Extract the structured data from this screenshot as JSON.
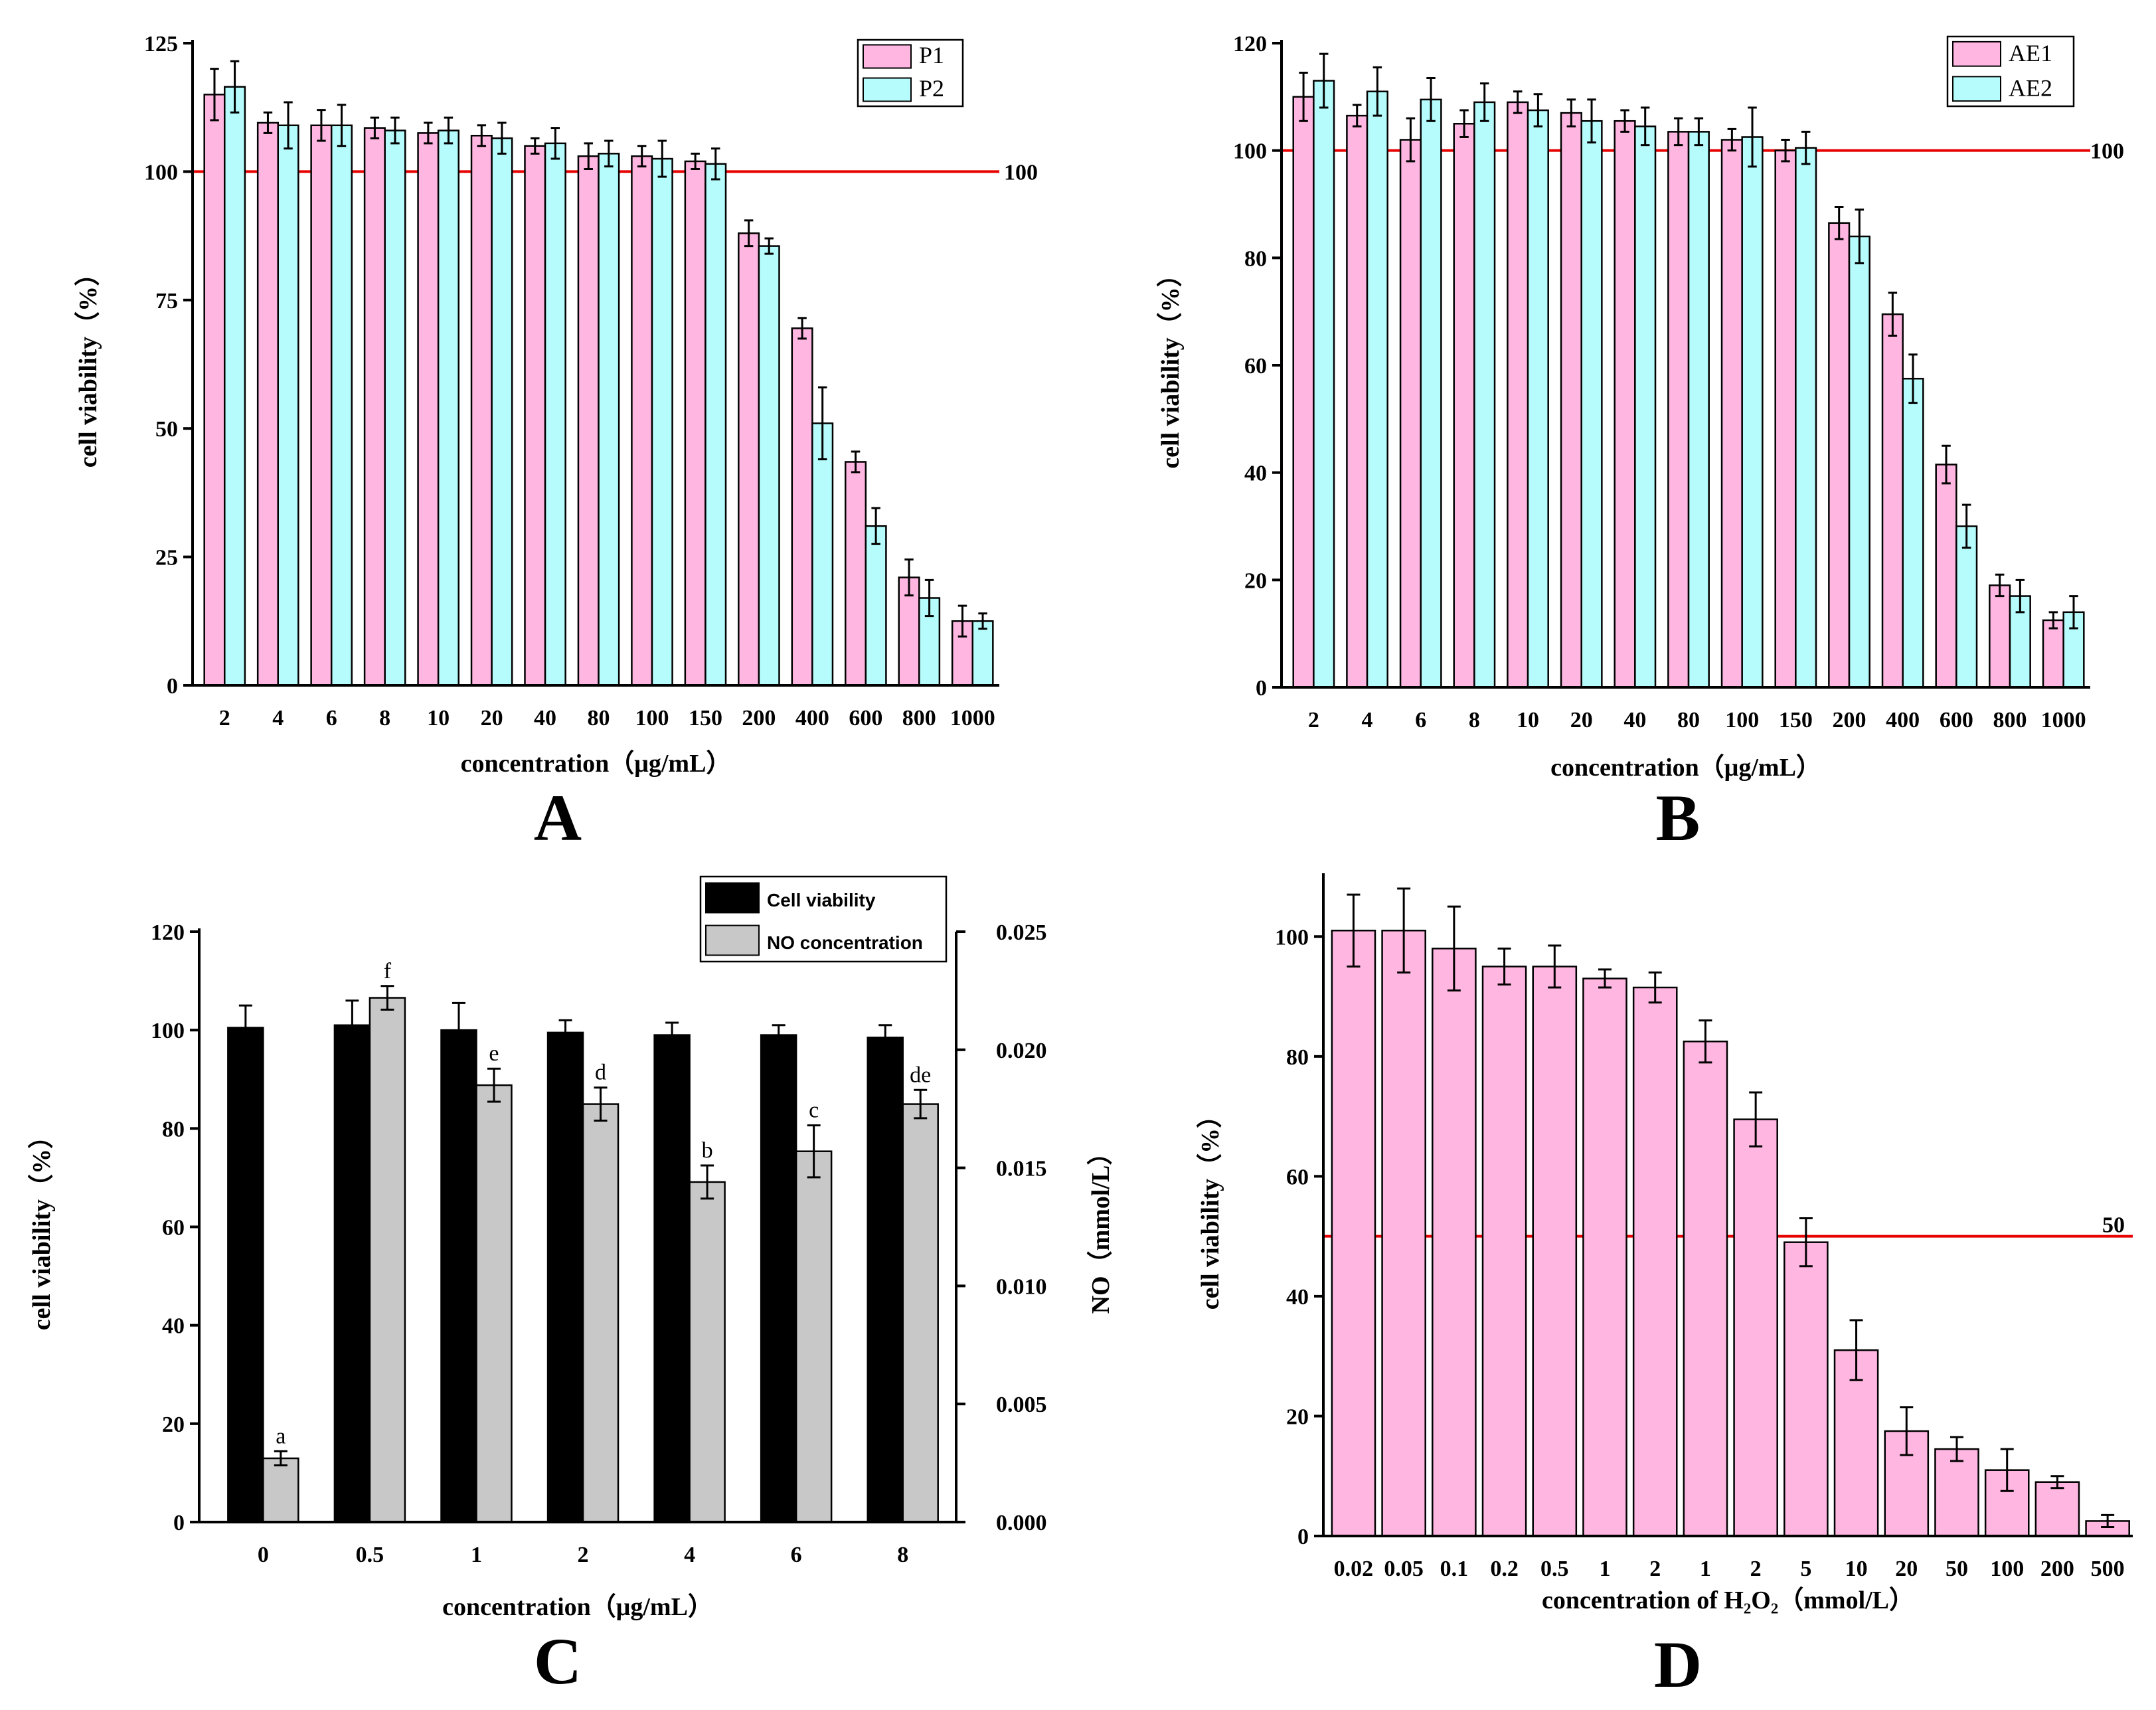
{
  "chart_data": [
    {
      "panel": "A",
      "type": "bar",
      "xlabel": "concentration（μg/mL）",
      "ylabel": "cell viability（%）",
      "ylim": [
        0,
        125
      ],
      "yticks": [
        0,
        25,
        50,
        75,
        100,
        125
      ],
      "categories": [
        "2",
        "4",
        "6",
        "8",
        "10",
        "20",
        "40",
        "80",
        "100",
        "150",
        "200",
        "400",
        "600",
        "800",
        "1000"
      ],
      "series": [
        {
          "name": "P1",
          "color": "#ffb6e1",
          "values": [
            115,
            109.5,
            109,
            108.5,
            107.5,
            107,
            105,
            103,
            103,
            102,
            88,
            69.5,
            43.5,
            21,
            12.5
          ],
          "errors": [
            5,
            2,
            3,
            2,
            2,
            2,
            1.5,
            2.5,
            2,
            1.5,
            2.5,
            2,
            2,
            3.5,
            3
          ]
        },
        {
          "name": "P2",
          "color": "#b6fcfc",
          "values": [
            116.5,
            109,
            109,
            108,
            108,
            106.5,
            105.5,
            103.5,
            102.5,
            101.5,
            85.5,
            51,
            31,
            17,
            12.5
          ],
          "errors": [
            5,
            4.5,
            4,
            2.5,
            2.5,
            3,
            3,
            2.5,
            3.5,
            3,
            1.5,
            7,
            3.5,
            3.5,
            1.5
          ]
        }
      ],
      "reference_line": {
        "value": 100,
        "label": "100"
      },
      "legend": [
        "P1",
        "P2"
      ],
      "legend_position": "top-right"
    },
    {
      "panel": "B",
      "type": "bar",
      "xlabel": "concentration（μg/mL）",
      "ylabel": "cell viability（%）",
      "ylim": [
        0,
        120
      ],
      "yticks": [
        0,
        20,
        40,
        60,
        80,
        100,
        120
      ],
      "categories": [
        "2",
        "4",
        "6",
        "8",
        "10",
        "20",
        "40",
        "80",
        "100",
        "150",
        "200",
        "400",
        "600",
        "800",
        "1000"
      ],
      "series": [
        {
          "name": "AE1",
          "color": "#ffb6e1",
          "values": [
            110,
            106.5,
            102,
            105,
            109,
            107,
            105.5,
            103.5,
            102,
            100,
            86.5,
            69.5,
            41.5,
            19,
            12.5
          ],
          "errors": [
            4.5,
            2,
            4,
            2.5,
            2,
            2.5,
            2,
            2.5,
            2,
            2,
            3,
            4,
            3.5,
            2,
            1.5
          ]
        },
        {
          "name": "AE2",
          "color": "#b6fcfc",
          "values": [
            113,
            111,
            109.5,
            109,
            107.5,
            105.5,
            104.5,
            103.5,
            102.5,
            100.5,
            84,
            57.5,
            30,
            17,
            14
          ],
          "errors": [
            5,
            4.5,
            4,
            3.5,
            3,
            4,
            3.5,
            2.5,
            5.5,
            3,
            5,
            4.5,
            4,
            3,
            3
          ]
        }
      ],
      "reference_line": {
        "value": 100,
        "label": "100"
      },
      "legend": [
        "AE1",
        "AE2"
      ],
      "legend_position": "top-right"
    },
    {
      "panel": "C",
      "type": "bar",
      "xlabel": "concentration（μg/mL）",
      "ylabel": "cell viability（%）",
      "y2label": "NO（mmol/L）",
      "ylim": [
        0,
        120
      ],
      "yticks": [
        0,
        20,
        40,
        60,
        80,
        100,
        120
      ],
      "y2lim": [
        0,
        0.025
      ],
      "y2ticks": [
        "0.000",
        "0.005",
        "0.010",
        "0.015",
        "0.020",
        "0.025"
      ],
      "categories": [
        "0",
        "0.5",
        "1",
        "2",
        "4",
        "6",
        "8"
      ],
      "series": [
        {
          "name": "Cell viability",
          "color": "#000000",
          "axis": "left",
          "values": [
            100.5,
            101,
            100,
            99.5,
            99,
            99,
            98.5
          ],
          "errors": [
            4.5,
            5,
            5.5,
            2.5,
            2.5,
            2,
            2.5
          ]
        },
        {
          "name": "NO concentration",
          "color": "#c8c8c8",
          "axis": "right",
          "values": [
            0.0027,
            0.0222,
            0.0185,
            0.0177,
            0.0144,
            0.0157,
            0.0177
          ],
          "errors": [
            0.0003,
            0.0005,
            0.0007,
            0.0007,
            0.0007,
            0.0011,
            0.0006
          ],
          "letters": [
            "a",
            "f",
            "e",
            "d",
            "b",
            "c",
            "de"
          ]
        }
      ],
      "legend": [
        "Cell viability",
        "NO concentration"
      ],
      "legend_position": "top-right"
    },
    {
      "panel": "D",
      "type": "bar",
      "xlabel": "concentration of H₂O₂（mmol/L）",
      "ylabel": "cell viability（%）",
      "ylim": [
        0,
        110
      ],
      "yticks": [
        0,
        20,
        40,
        60,
        80,
        100
      ],
      "categories": [
        "0.02",
        "0.05",
        "0.1",
        "0.2",
        "0.5",
        "1",
        "2",
        "1",
        "2",
        "5",
        "10",
        "20",
        "50",
        "100",
        "200",
        "500"
      ],
      "series": [
        {
          "name": "cell viability",
          "color": "#ffb6e1",
          "values": [
            101,
            101,
            98,
            95,
            95,
            93,
            91.5,
            82.5,
            69.5,
            49,
            31,
            17.5,
            14.5,
            11,
            9,
            2.5
          ],
          "errors": [
            6,
            7,
            7,
            3,
            3.5,
            1.5,
            2.5,
            3.5,
            4.5,
            4,
            5,
            4,
            2,
            3.5,
            1,
            1
          ]
        }
      ],
      "reference_line": {
        "value": 50,
        "label": "50"
      }
    }
  ]
}
